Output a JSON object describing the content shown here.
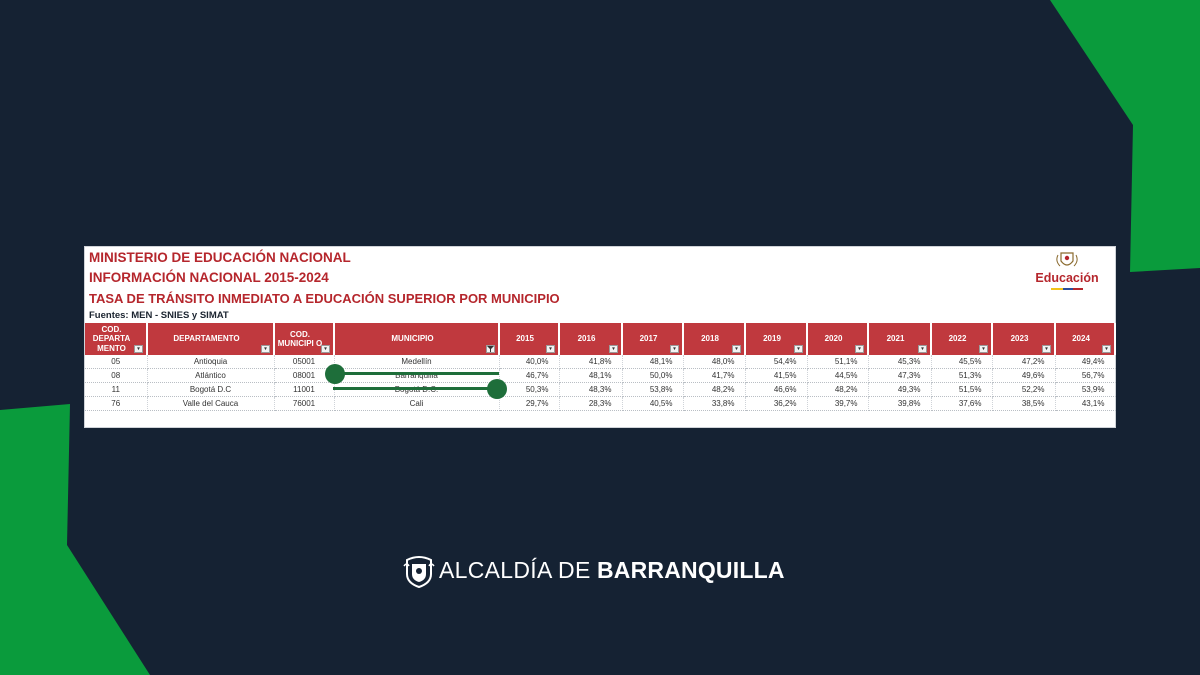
{
  "colors": {
    "background": "#152233",
    "brand_green": "#0a9b3c",
    "header_red": "#c0393e",
    "title_red": "#b5262c",
    "highlight_green": "#1e6e3a"
  },
  "sheet": {
    "title_1": "MINISTERIO DE EDUCACIÓN NACIONAL",
    "title_2": "INFORMACIÓN NACIONAL 2015-2024",
    "title_3": "TASA DE TRÁNSITO INMEDIATO A EDUCACIÓN SUPERIOR POR MUNICIPIO",
    "sources": "Fuentes: MEN - SNIES y SIMAT",
    "logo_text": "Educación",
    "logo_icon": "coat-of-arms-icon",
    "dropdown_icon": "▾",
    "filter_icon": "filter-icon",
    "columns": [
      "COD. DEPARTA MENTO",
      "DEPARTAMENTO",
      "COD. MUNICIPI O",
      "MUNICIPIO",
      "2015",
      "2016",
      "2017",
      "2018",
      "2019",
      "2020",
      "2021",
      "2022",
      "2023",
      "2024"
    ],
    "rows": [
      [
        "05",
        "Antioquia",
        "05001",
        "Medellín",
        "40,0%",
        "41,8%",
        "48,1%",
        "48,0%",
        "54,4%",
        "51,1%",
        "45,3%",
        "45,5%",
        "47,2%",
        "49,4%"
      ],
      [
        "08",
        "Atlántico",
        "08001",
        "Barranquilla",
        "46,7%",
        "48,1%",
        "50,0%",
        "41,7%",
        "41,5%",
        "44,5%",
        "47,3%",
        "51,3%",
        "49,6%",
        "56,7%"
      ],
      [
        "11",
        "Bogotá D.C",
        "11001",
        "Bogotá D.C.",
        "50,3%",
        "48,3%",
        "53,8%",
        "48,2%",
        "46,6%",
        "48,2%",
        "49,3%",
        "51,5%",
        "52,2%",
        "53,9%"
      ],
      [
        "76",
        "Valle del Cauca",
        "76001",
        "Cali",
        "29,7%",
        "28,3%",
        "40,5%",
        "33,8%",
        "36,2%",
        "39,7%",
        "39,8%",
        "37,6%",
        "38,5%",
        "43,1%"
      ]
    ]
  },
  "footer": {
    "logo_icon": "alcaldia-crest-icon",
    "text_light": "ALCALDÍA DE",
    "text_bold": "BARRANQUILLA"
  }
}
